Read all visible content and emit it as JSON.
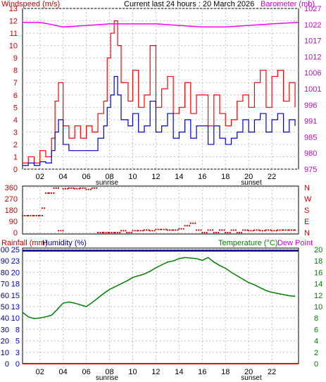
{
  "header": {
    "wind_label": "Windspeed (m/s)",
    "title": "Current last 24 hours : 20 March 2026",
    "baro_label": "Barometer (mb)"
  },
  "bottom_header": {
    "rain_label": "Rainfall (mm)",
    "humidity_label": "Humidity (%)",
    "temp_label": "Temperature (°C)",
    "dew_label": "Dew Point"
  },
  "x_axis": {
    "hours": [
      "02",
      "04",
      "06",
      "08",
      "10",
      "12",
      "14",
      "16",
      "18",
      "20",
      "22"
    ],
    "sunrise": "sunrise",
    "sunset": "sunset"
  },
  "colors": {
    "wind_gust": "#ff0000",
    "wind_avg": "#0000cc",
    "barometer": "#ff00ff",
    "direction": "#cc0000",
    "temperature": "#008000",
    "humidity": "#00008b",
    "rain": "#ff0000",
    "grid": "#c0c0c0"
  },
  "chart_data": [
    {
      "type": "line",
      "name": "wind-barometer",
      "y_left_ticks": [
        0,
        1,
        2,
        3,
        4,
        5,
        6,
        7,
        8,
        9,
        10,
        11,
        12,
        13
      ],
      "y_right_ticks": [
        975,
        980,
        985,
        991,
        996,
        1001,
        1006,
        1012,
        1017,
        1022,
        1027
      ],
      "ylim_left": [
        0,
        13
      ],
      "ylim_right": [
        975,
        1027
      ],
      "xlim_hours": [
        0.5,
        24.3
      ],
      "series": [
        {
          "name": "Windspeed gust",
          "x": [
            0.5,
            1.0,
            1.5,
            2.0,
            2.5,
            3.0,
            3.3,
            3.6,
            4.0,
            4.5,
            5.0,
            5.5,
            6.0,
            6.5,
            7.0,
            7.5,
            7.8,
            8.1,
            8.4,
            8.7,
            9.0,
            9.3,
            9.6,
            10.0,
            10.5,
            11.0,
            11.5,
            12.0,
            12.5,
            13.0,
            13.5,
            14.0,
            14.5,
            15.0,
            15.5,
            16.0,
            16.5,
            17.0,
            17.5,
            18.0,
            18.5,
            19.0,
            19.5,
            20.0,
            20.5,
            21.0,
            21.5,
            22.0,
            22.5,
            23.0,
            23.5,
            24.0
          ],
          "values": [
            0.5,
            1.0,
            0.5,
            1.5,
            1.0,
            2.5,
            5.5,
            7.0,
            3.5,
            2.5,
            3.5,
            2.5,
            3.5,
            3.0,
            4.5,
            5.5,
            9.0,
            11.0,
            12.0,
            10.0,
            7.0,
            7.0,
            5.5,
            8.0,
            5.0,
            6.0,
            10.0,
            5.0,
            6.5,
            7.5,
            4.5,
            5.0,
            7.0,
            4.5,
            6.0,
            6.0,
            3.5,
            6.0,
            4.5,
            3.5,
            4.0,
            5.5,
            6.0,
            5.0,
            7.0,
            8.0,
            5.0,
            7.5,
            8.0,
            5.5,
            7.0,
            5.0
          ]
        },
        {
          "name": "Windspeed average",
          "x": [
            0.5,
            1.0,
            1.5,
            2.0,
            2.5,
            3.0,
            3.3,
            3.6,
            4.0,
            4.5,
            5.0,
            5.5,
            6.0,
            6.5,
            7.0,
            7.5,
            7.8,
            8.1,
            8.4,
            8.7,
            9.0,
            9.3,
            9.6,
            10.0,
            10.5,
            11.0,
            11.5,
            12.0,
            12.5,
            13.0,
            13.5,
            14.0,
            14.5,
            15.0,
            15.5,
            16.0,
            16.5,
            17.0,
            17.5,
            18.0,
            18.5,
            19.0,
            19.5,
            20.0,
            20.5,
            21.0,
            21.5,
            22.0,
            22.5,
            23.0,
            23.5,
            24.0
          ],
          "values": [
            0.3,
            0.5,
            0.3,
            0.6,
            0.5,
            1.5,
            3.0,
            4.0,
            2.0,
            1.5,
            1.5,
            1.5,
            1.5,
            1.5,
            2.5,
            3.5,
            5.0,
            6.0,
            7.5,
            6.0,
            4.0,
            4.0,
            3.5,
            4.5,
            3.0,
            3.5,
            5.5,
            3.0,
            3.5,
            4.5,
            2.5,
            3.0,
            4.0,
            2.5,
            3.5,
            3.5,
            2.0,
            3.5,
            2.5,
            2.0,
            2.5,
            3.0,
            4.0,
            3.0,
            4.0,
            4.5,
            3.0,
            4.0,
            4.5,
            3.0,
            4.0,
            3.5
          ]
        },
        {
          "name": "Barometer",
          "x": [
            0.5,
            2,
            3,
            4,
            6,
            8,
            10,
            12,
            14,
            16,
            18,
            20,
            22,
            24.3
          ],
          "values": [
            1022.5,
            1022.5,
            1021.8,
            1021,
            1021.5,
            1022,
            1022,
            1022,
            1021.5,
            1021,
            1021,
            1021.5,
            1022,
            1022.5
          ]
        }
      ]
    },
    {
      "type": "scatter",
      "name": "wind-direction",
      "y_ticks": [
        0,
        90,
        180,
        270,
        360
      ],
      "y_ticks_right": [
        "N",
        "E",
        "S",
        "W",
        "N"
      ],
      "ylim": [
        0,
        360
      ],
      "series": [
        {
          "name": "Wind direction",
          "x": [
            0.5,
            1.0,
            1.5,
            2.0,
            2.2,
            2.5,
            2.8,
            3.2,
            3.6,
            4.0,
            4.5,
            5.0,
            5.5,
            6.0,
            6.5,
            7.0,
            7.5,
            8.0,
            8.5,
            9.0,
            9.5,
            10.0,
            10.5,
            11.0,
            11.5,
            12.0,
            12.5,
            13.0,
            13.5,
            14.0,
            14.5,
            15.0,
            15.5,
            16.0,
            16.5,
            17.0,
            17.5,
            18.0,
            18.5,
            19.0,
            19.5,
            20.0,
            20.5,
            21.0,
            21.5,
            22.0,
            22.5,
            23.0,
            23.5,
            24.0
          ],
          "values": [
            135,
            135,
            135,
            135,
            195,
            315,
            315,
            355,
            15,
            350,
            355,
            350,
            355,
            345,
            355,
            0,
            0,
            0,
            0,
            15,
            0,
            15,
            15,
            20,
            15,
            25,
            25,
            20,
            20,
            30,
            55,
            75,
            20,
            0,
            20,
            0,
            20,
            0,
            20,
            0,
            20,
            15,
            20,
            15,
            20,
            15,
            20,
            20,
            20,
            20
          ]
        }
      ]
    },
    {
      "type": "line",
      "name": "temperature-humidity-rain",
      "y_left_ticks": [
        0,
        10,
        20,
        30,
        40,
        50,
        60,
        70,
        80,
        90,
        100
      ],
      "y_left2_ticks": [
        0,
        3,
        5,
        8,
        10,
        13,
        15,
        18,
        20,
        23,
        25
      ],
      "y_right_ticks": [
        0,
        2,
        4,
        6,
        8,
        10,
        12,
        14,
        16,
        18,
        20
      ],
      "ylim_humidity": [
        0,
        100
      ],
      "ylim_temp": [
        0,
        20
      ],
      "series": [
        {
          "name": "Temperature",
          "x": [
            0.5,
            1,
            1.5,
            2,
            2.5,
            3,
            3.5,
            4,
            4.5,
            5,
            5.5,
            6,
            6.5,
            7,
            7.5,
            8,
            8.5,
            9,
            9.5,
            10,
            10.5,
            11,
            11.5,
            12,
            12.5,
            13,
            13.5,
            14,
            14.5,
            15,
            15.5,
            16,
            16.5,
            17,
            17.5,
            18,
            18.5,
            19,
            19.5,
            20,
            20.5,
            21,
            21.5,
            22,
            22.5,
            23,
            23.5,
            24
          ],
          "values": [
            9.0,
            8.2,
            7.9,
            8.0,
            8.2,
            8.5,
            9.5,
            10.6,
            10.8,
            10.6,
            10.3,
            10.0,
            10.7,
            11.5,
            12.3,
            13.0,
            13.5,
            14.0,
            14.5,
            15.1,
            15.4,
            15.7,
            16.2,
            16.8,
            17.3,
            17.8,
            18.0,
            18.4,
            18.6,
            18.5,
            18.4,
            18.1,
            18.6,
            17.8,
            17.2,
            16.7,
            16.0,
            15.4,
            14.8,
            14.2,
            13.8,
            13.3,
            12.8,
            12.5,
            12.3,
            12.1,
            11.9,
            11.8
          ]
        },
        {
          "name": "Humidity",
          "x": [
            0.5,
            24.3
          ],
          "values": [
            99,
            99
          ]
        },
        {
          "name": "Rainfall",
          "x": [
            0.5,
            24.3
          ],
          "values": [
            0,
            0
          ]
        }
      ]
    }
  ]
}
